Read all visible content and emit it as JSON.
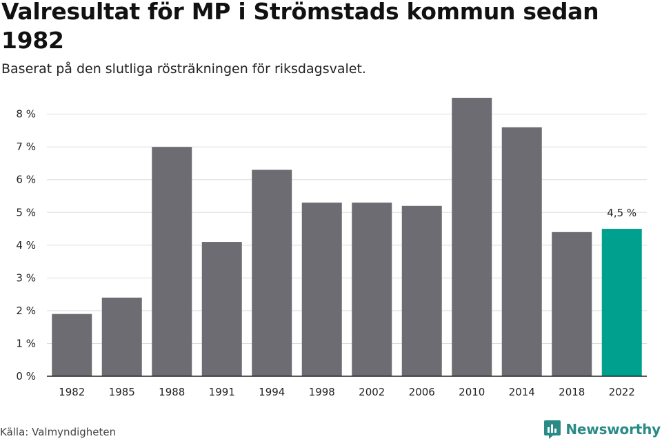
{
  "title": "Valresultat för MP i Strömstads kommun sedan 1982",
  "subtitle": "Baserat på den slutliga rösträkningen för riksdagsvalet.",
  "source": "Källa: Valmyndigheten",
  "brand": {
    "name": "Newsworthy",
    "icon": "newsworthy-logo-icon",
    "color": "#2a8b86"
  },
  "chart_data": {
    "type": "bar",
    "title": "Valresultat för MP i Strömstads kommun sedan 1982",
    "xlabel": "",
    "ylabel": "",
    "categories": [
      "1982",
      "1985",
      "1988",
      "1991",
      "1994",
      "1998",
      "2002",
      "2006",
      "2010",
      "2014",
      "2018",
      "2022"
    ],
    "values": [
      1.9,
      2.4,
      7.0,
      4.1,
      6.3,
      5.3,
      5.3,
      5.2,
      8.5,
      7.6,
      4.4,
      4.5
    ],
    "ylim": [
      0,
      8
    ],
    "yticks": [
      0,
      1,
      2,
      3,
      4,
      5,
      6,
      7,
      8
    ],
    "ytick_labels": [
      "0 %",
      "1 %",
      "2 %",
      "3 %",
      "4 %",
      "5 %",
      "6 %",
      "7 %",
      "8 %"
    ],
    "grid": true,
    "bar_color": "#6d6c72",
    "highlight_color": "#00a08e",
    "highlight_index": 11,
    "annotation": {
      "category": "2022",
      "text": "4,5 %"
    }
  }
}
